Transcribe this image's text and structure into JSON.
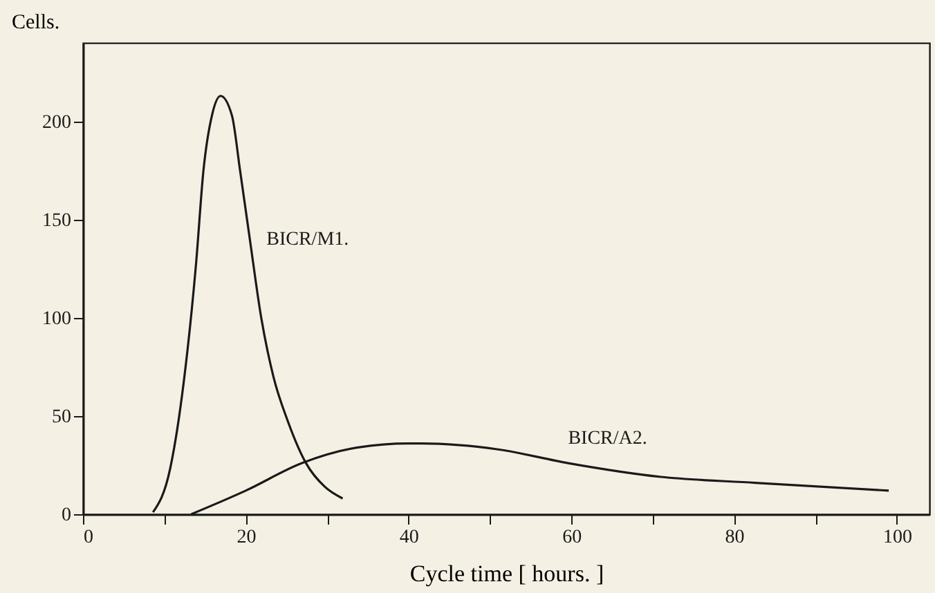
{
  "chart_data": {
    "type": "line",
    "xlabel": "Cycle time  [ hours. ]",
    "ylabel": "Cells.",
    "xlim": [
      0,
      104
    ],
    "ylim": [
      0,
      240
    ],
    "xticks": [
      0,
      {
        "value": 10,
        "label": null
      },
      20,
      {
        "value": 30,
        "label": null
      },
      40,
      {
        "value": 50,
        "label": null
      },
      60,
      {
        "value": 70,
        "label": null
      },
      80,
      {
        "value": 90,
        "label": null
      },
      100
    ],
    "yticks": [
      0,
      50,
      100,
      150,
      200
    ],
    "grid": false,
    "marker": "none",
    "line_style": "solid",
    "series": [
      {
        "name": "BICR/M1.",
        "color": "#1a1a1a",
        "x": [
          8.6,
          10.7,
          12.4,
          13.9,
          14.8,
          15.9,
          16.9,
          18.3,
          19.3,
          20.5,
          21.9,
          23.4,
          25.2,
          27.4,
          29.7,
          31.9
        ],
        "values": [
          1,
          23,
          68,
          128,
          175,
          204,
          213,
          203,
          175,
          140,
          100,
          70,
          47,
          26,
          14,
          8
        ]
      },
      {
        "name": "BICR/A2.",
        "color": "#1a1a1a",
        "x": [
          13.3,
          20,
          26.9,
          33.8,
          40,
          41.6,
          51,
          59.6,
          71,
          82.6,
          99
        ],
        "values": [
          0,
          12,
          26,
          34,
          36,
          36,
          33,
          26,
          19,
          16,
          12
        ]
      }
    ]
  }
}
